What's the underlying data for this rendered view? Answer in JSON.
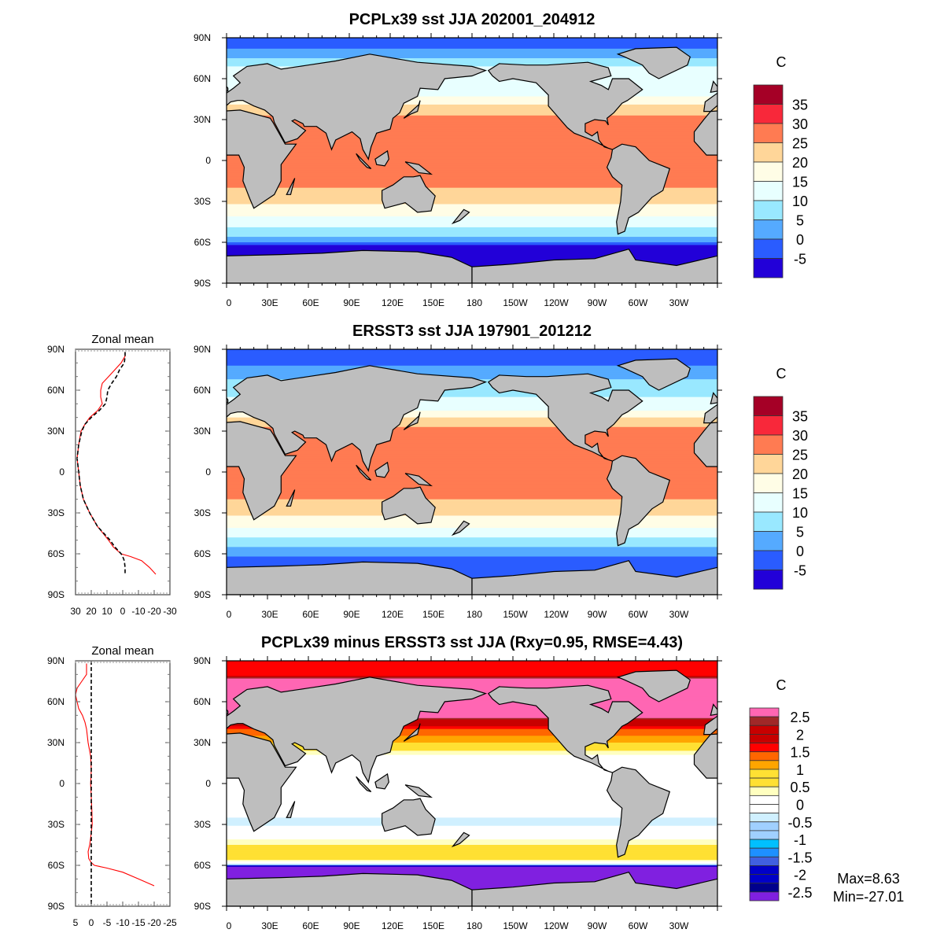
{
  "panels": [
    {
      "title": "PCPLx39 sst JJA 202001_204912",
      "units": "C",
      "colorbar": "sst",
      "field": "model"
    },
    {
      "title": "ERSST3 sst JJA 197901_201212",
      "units": "C",
      "colorbar": "sst",
      "field": "obs"
    },
    {
      "title": "PCPLx39 minus ERSST3 sst JJA (Rxy=0.95, RMSE=4.43)",
      "units": "C",
      "colorbar": "diff",
      "field": "diff",
      "stats": {
        "max": "Max=8.63",
        "min": "Min=-27.01"
      }
    }
  ],
  "lat_ticks": [
    "90N",
    "60N",
    "30N",
    "0",
    "30S",
    "60S",
    "90S"
  ],
  "lon_ticks": [
    "0",
    "30E",
    "60E",
    "90E",
    "120E",
    "150E",
    "180",
    "150W",
    "120W",
    "90W",
    "60W",
    "30W"
  ],
  "land_color": "#bebebe",
  "colorbars": {
    "sst": {
      "labels": [
        "35",
        "30",
        "25",
        "20",
        "15",
        "10",
        "5",
        "0",
        "-5"
      ],
      "levels": [
        -5,
        0,
        5,
        10,
        15,
        20,
        25,
        30,
        35
      ],
      "colors": [
        "#a50026",
        "#f8283a",
        "#ff7b52",
        "#ffd699",
        "#fffde6",
        "#e8ffff",
        "#99e8ff",
        "#55aaff",
        "#2a5cff",
        "#2200d8"
      ]
    },
    "diff": {
      "labels": [
        "2.5",
        "2",
        "1.5",
        "1",
        "0.5",
        "0",
        "-0.5",
        "-1",
        "-1.5",
        "-2",
        "-2.5"
      ],
      "levels": [
        -2.5,
        -2.25,
        -2,
        -1.75,
        -1.5,
        -1.25,
        -1,
        -0.75,
        -0.5,
        -0.25,
        0,
        0.25,
        0.5,
        0.75,
        1,
        1.25,
        1.5,
        1.75,
        2,
        2.25,
        2.5
      ],
      "colors": [
        "#ff66b3",
        "#a02828",
        "#c80000",
        "#c80000",
        "#ff0000",
        "#ff6600",
        "#ffa500",
        "#ffe033",
        "#ffe033",
        "#ffffc0",
        "#ffffff",
        "#ffffff",
        "#d0f0ff",
        "#a0d0ff",
        "#a0d0ff",
        "#00c0ff",
        "#1e90ff",
        "#4060e0",
        "#0000c8",
        "#0000c8",
        "#00008c",
        "#8020e0"
      ]
    }
  },
  "chart_data": [
    {
      "type": "line",
      "title": "Zonal mean",
      "xlim": [
        30,
        -30
      ],
      "xticks": [
        "30",
        "20",
        "10",
        "0",
        "-10",
        "-20",
        "-30"
      ],
      "xtick_values": [
        30,
        20,
        10,
        0,
        -10,
        -20,
        -30
      ],
      "ylim": [
        -90,
        90
      ],
      "yticks": [
        "90N",
        "60N",
        "30N",
        "0",
        "30S",
        "60S",
        "90S"
      ],
      "lat": [
        88,
        85,
        80,
        75,
        70,
        65,
        60,
        55,
        50,
        45,
        40,
        35,
        30,
        20,
        10,
        0,
        -10,
        -20,
        -30,
        -40,
        -50,
        -55,
        -60,
        -62,
        -65,
        -70,
        -75
      ],
      "series": [
        {
          "color": "#ff0000",
          "dash": false,
          "values": [
            -1.5,
            -1.5,
            1,
            5,
            9,
            13,
            14,
            14,
            13,
            16,
            21,
            24,
            26.5,
            28,
            29,
            28,
            27,
            25,
            21,
            16,
            9,
            6,
            1,
            -5,
            -12,
            -17,
            -21
          ]
        },
        {
          "color": "#000000",
          "dash": true,
          "values": [
            -1.5,
            -1.5,
            -1,
            2,
            4,
            7,
            9.5,
            10,
            11,
            15,
            20,
            24,
            26,
            28,
            29,
            28,
            27,
            25,
            21,
            16,
            8,
            5,
            1,
            0,
            -1,
            -1.5,
            -1.5
          ]
        }
      ]
    },
    {
      "type": "line",
      "title": "Zonal mean",
      "xlim": [
        5,
        -25
      ],
      "xticks": [
        "5",
        "0",
        "-5",
        "-10",
        "-15",
        "-20",
        "-25"
      ],
      "xtick_values": [
        5,
        0,
        -5,
        -10,
        -15,
        -20,
        -25
      ],
      "ylim": [
        -90,
        90
      ],
      "yticks": [
        "90N",
        "60N",
        "30N",
        "0",
        "30S",
        "60S",
        "90S"
      ],
      "lat": [
        88,
        80,
        75,
        70,
        65,
        60,
        55,
        50,
        45,
        40,
        30,
        20,
        10,
        0,
        -10,
        -20,
        -30,
        -40,
        -45,
        -50,
        -55,
        -58,
        -60,
        -62,
        -65,
        -70,
        -75
      ],
      "series": [
        {
          "color": "#ff0000",
          "dash": false,
          "values": [
            1.5,
            1.5,
            3,
            4.5,
            5,
            4.5,
            4,
            2.8,
            2,
            1.5,
            1,
            0.2,
            0,
            0.2,
            0,
            -0.2,
            -0.3,
            0.2,
            0.5,
            1,
            0.8,
            0,
            -1,
            -5,
            -10,
            -15,
            -20
          ]
        },
        {
          "color": "#000000",
          "dash": true,
          "values": [
            0,
            0,
            0,
            0,
            0,
            0,
            0,
            0,
            0,
            0,
            0,
            0,
            0,
            0,
            0,
            0,
            0,
            0,
            0,
            0,
            0,
            0,
            0,
            0,
            0,
            0,
            0
          ]
        }
      ]
    }
  ]
}
